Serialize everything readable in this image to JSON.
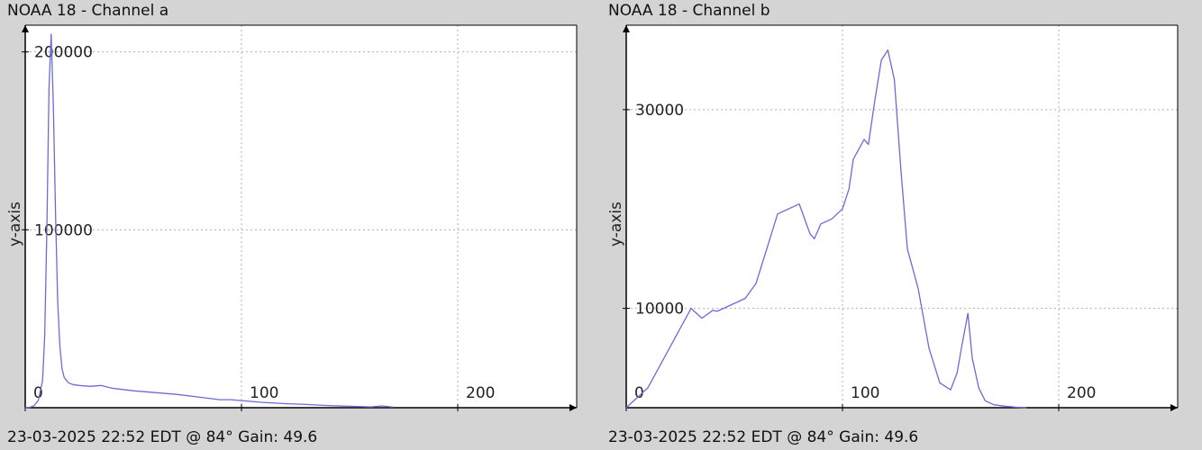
{
  "chart_data": [
    {
      "type": "line",
      "title": "NOAA 18 - Channel a",
      "footer": "23-03-2025 22:52 EDT @ 84° Gain: 49.6",
      "xlabel": "",
      "ylabel": "y-axis",
      "xlim": [
        0,
        255
      ],
      "ylim": [
        0,
        215000
      ],
      "x_ticks": [
        0,
        100,
        200
      ],
      "y_ticks": [
        100000,
        200000
      ],
      "grid": true,
      "line_color": "#6b6bd6",
      "series": [
        {
          "x": [
            0,
            2,
            4,
            6,
            8,
            9,
            10,
            11,
            12,
            13,
            14,
            15,
            16,
            17,
            18,
            20,
            22,
            25,
            30,
            35,
            40,
            50,
            60,
            70,
            80,
            90,
            95,
            100,
            110,
            120,
            130,
            140,
            150,
            160,
            165,
            170
          ],
          "values": [
            0,
            200,
            1000,
            4000,
            15000,
            40000,
            100000,
            180000,
            210000,
            170000,
            110000,
            60000,
            35000,
            22000,
            17000,
            14000,
            13000,
            12500,
            12000,
            12500,
            11000,
            9500,
            8500,
            7500,
            6000,
            4500,
            4500,
            4000,
            3000,
            2300,
            1800,
            1200,
            800,
            400,
            1000,
            300
          ]
        }
      ]
    },
    {
      "type": "line",
      "title": "NOAA 18 - Channel b",
      "footer": "23-03-2025 22:52 EDT @ 84° Gain: 49.6",
      "xlabel": "",
      "ylabel": "y-axis",
      "xlim": [
        0,
        255
      ],
      "ylim": [
        0,
        38500
      ],
      "x_ticks": [
        0,
        100,
        200
      ],
      "y_ticks": [
        10000,
        30000
      ],
      "grid": true,
      "line_color": "#6b6bd6",
      "series": [
        {
          "x": [
            0,
            5,
            10,
            15,
            20,
            25,
            30,
            35,
            40,
            42,
            45,
            50,
            55,
            60,
            65,
            70,
            75,
            80,
            85,
            87,
            90,
            95,
            100,
            103,
            105,
            110,
            112,
            115,
            118,
            121,
            124,
            127,
            130,
            135,
            140,
            145,
            150,
            153,
            155,
            158,
            160,
            163,
            166,
            170,
            175,
            180,
            185
          ],
          "values": [
            0,
            1000,
            2000,
            4000,
            6000,
            8000,
            10000,
            9000,
            9800,
            9700,
            10000,
            10500,
            11000,
            12500,
            16000,
            19500,
            20000,
            20500,
            17500,
            17000,
            18500,
            19000,
            20000,
            22000,
            25000,
            27000,
            26500,
            31000,
            35000,
            36000,
            33000,
            24000,
            16000,
            12000,
            6000,
            2500,
            1800,
            3500,
            6000,
            9500,
            5000,
            2000,
            700,
            300,
            150,
            50,
            0
          ]
        }
      ]
    }
  ]
}
